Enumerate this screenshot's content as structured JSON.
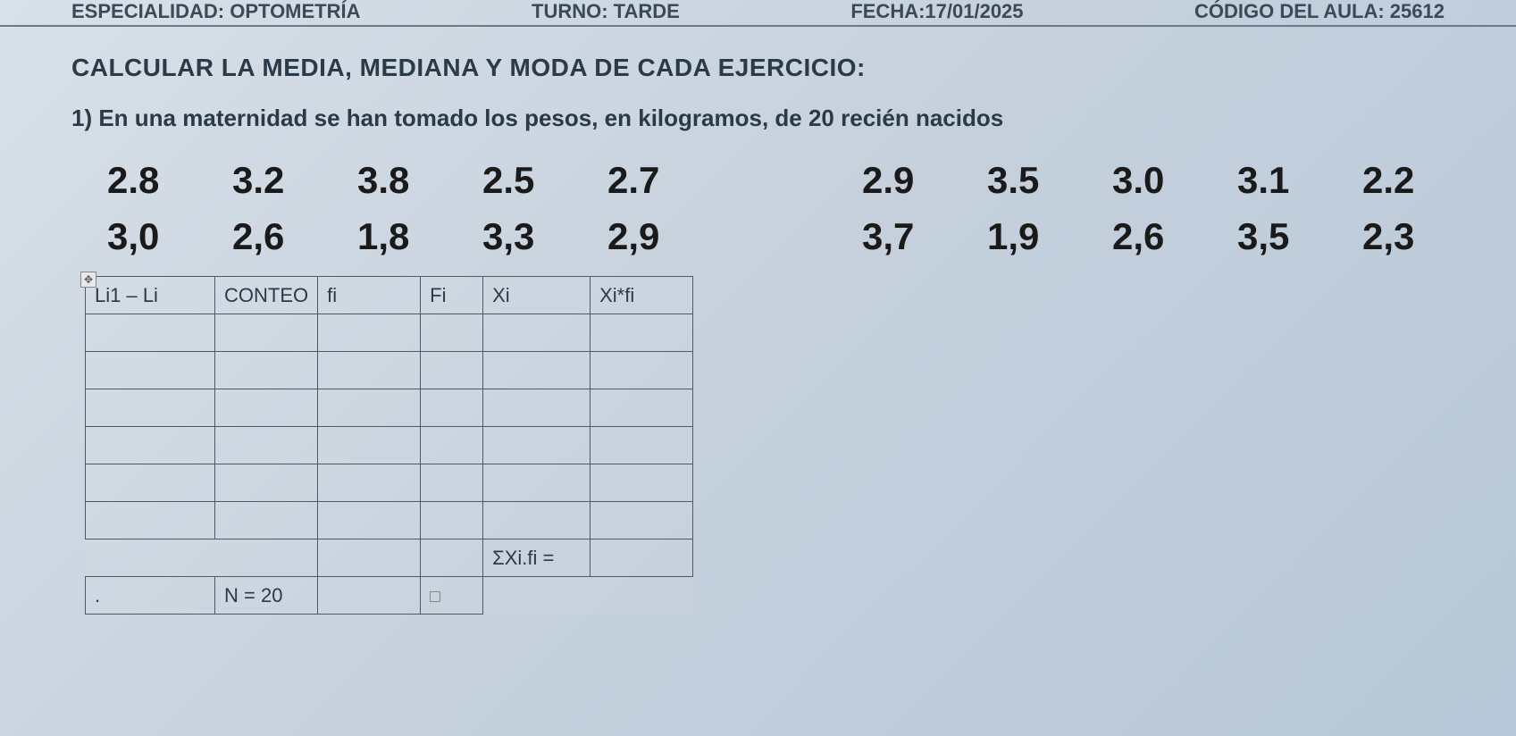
{
  "header": {
    "especialidad": "ESPECIALIDAD: OPTOMETRÍA",
    "turno": "TURNO: TARDE",
    "fecha": "FECHA:17/01/2025",
    "codigo": "CÓDIGO DEL AULA: 25612"
  },
  "title": "CALCULAR LA MEDIA, MEDIANA Y MODA DE CADA EJERCICIO:",
  "exercise": "1) En una maternidad se han tomado los pesos, en kilogramos, de 20 recién nacidos",
  "data_left": {
    "row1": [
      "2.8",
      "3.2",
      "3.8",
      "2.5",
      "2.7"
    ],
    "row2": [
      "3,0",
      "2,6",
      "1,8",
      "3,3",
      "2,9"
    ]
  },
  "data_right": {
    "row1": [
      "2.9",
      "3.5",
      "3.0",
      "3.1",
      "2.2"
    ],
    "row2": [
      "3,7",
      "1,9",
      "2,6",
      "3,5",
      "2,3"
    ]
  },
  "table": {
    "headers": {
      "li": "Li1 – Li",
      "conteo": "CONTEO",
      "fi_lower": "fi",
      "fi_upper": "Fi",
      "xi": "Xi",
      "xifi": "Xi*fi"
    },
    "empty_rows": 6,
    "sum_label": "ΣXi.fi =",
    "n_label": "N = 20",
    "dot": "."
  },
  "colors": {
    "bg_start": "#d8e0e8",
    "bg_end": "#b8c8d8",
    "text_dark": "#2a3a48",
    "border": "#4a5a68"
  }
}
